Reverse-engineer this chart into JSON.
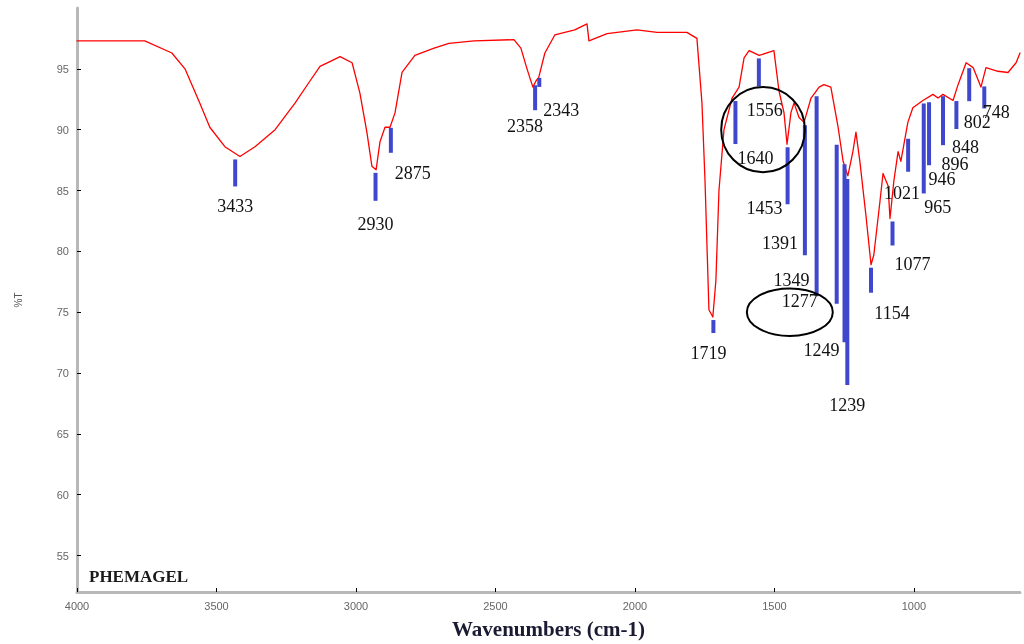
{
  "chart_data": {
    "type": "line",
    "xlabel": "Wavenumbers (cm-1)",
    "ylabel": "%T",
    "color": "#ff0000",
    "x": [
      4000,
      3757,
      3660,
      3613,
      3560,
      3524,
      3470,
      3416,
      3362,
      3290,
      3218,
      3165,
      3129,
      3075,
      3057,
      3014,
      2986,
      2961,
      2943,
      2928,
      2914,
      2896,
      2878,
      2860,
      2835,
      2789,
      2720,
      2667,
      2577,
      2434,
      2409,
      2387,
      2366,
      2355,
      2345,
      2323,
      2287,
      2216,
      2172,
      2165,
      2100,
      1993,
      1921,
      1814,
      1778,
      1760,
      1749,
      1735,
      1721,
      1710,
      1699,
      1681,
      1652,
      1627,
      1609,
      1591,
      1555,
      1502,
      1484,
      1466,
      1455,
      1441,
      1430,
      1412,
      1394,
      1369,
      1340,
      1323,
      1298,
      1272,
      1254,
      1237,
      1219,
      1208,
      1194,
      1172,
      1154,
      1144,
      1122,
      1111,
      1093,
      1086,
      1072,
      1057,
      1047,
      1022,
      1004,
      968,
      932,
      914,
      896,
      860,
      842,
      813,
      788,
      760,
      742,
      699,
      663,
      634,
      620
    ],
    "values": [
      97.3,
      97.3,
      96.3,
      95,
      92.2,
      90.2,
      88.6,
      87.8,
      88.6,
      90,
      92.2,
      94,
      95.2,
      95.8,
      96,
      95.5,
      93,
      89.8,
      87,
      86.7,
      89,
      90.2,
      90.2,
      91.4,
      94.7,
      96.1,
      96.7,
      97.1,
      97.3,
      97.4,
      96.7,
      95,
      93.5,
      94,
      94.3,
      96.3,
      97.8,
      98.2,
      98.7,
      97.3,
      97.9,
      98.2,
      98,
      98,
      97.5,
      92.2,
      85.8,
      75.2,
      74.6,
      77.6,
      85,
      90,
      92.6,
      93.5,
      95.9,
      96.5,
      96.1,
      96.5,
      93.2,
      91.4,
      88.8,
      91.4,
      92.2,
      91,
      90.6,
      92.6,
      93.5,
      93.7,
      93.5,
      90.2,
      87.4,
      86.2,
      88.2,
      89.8,
      87.4,
      82.9,
      78.9,
      79.7,
      84.1,
      86.4,
      85.4,
      82.7,
      85.8,
      88.2,
      87.4,
      90.6,
      91.8,
      92.4,
      92.9,
      92.6,
      92.9,
      92.4,
      93.7,
      95.5,
      95.1,
      93.5,
      95.1,
      94.8,
      94.7,
      95.5,
      96.3
    ],
    "xlim": [
      4000,
      620
    ],
    "xticks": [
      4000,
      3500,
      3000,
      2500,
      2000,
      1500,
      1000
    ],
    "ylim": [
      52,
      100
    ],
    "yticks": [
      55,
      60,
      65,
      70,
      75,
      80,
      85,
      90,
      95
    ],
    "grid": false,
    "legend": false,
    "annotations": [
      {
        "text": "3433",
        "x": 3433,
        "y": 87.8
      },
      {
        "text": "2930",
        "x": 2930,
        "y": 86.7
      },
      {
        "text": "2875",
        "x": 2875,
        "y": 90.4
      },
      {
        "text": "2358",
        "x": 2358,
        "y": 93.9
      },
      {
        "text": "2343",
        "x": 2343,
        "y": 94.5
      },
      {
        "text": "1719",
        "x": 1719,
        "y": 74.6
      },
      {
        "text": "1640",
        "x": 1640,
        "y": 92.6
      },
      {
        "text": "1556",
        "x": 1556,
        "y": 96.1
      },
      {
        "text": "1453",
        "x": 1453,
        "y": 88.8
      },
      {
        "text": "1391",
        "x": 1391,
        "y": 90.6
      },
      {
        "text": "1349",
        "x": 1349,
        "y": 93
      },
      {
        "text": "1277",
        "x": 1277,
        "y": 89
      },
      {
        "text": "1249",
        "x": 1249,
        "y": 87.4
      },
      {
        "text": "1239",
        "x": 1239,
        "y": 86.2
      },
      {
        "text": "1154",
        "x": 1154,
        "y": 78.9
      },
      {
        "text": "1077",
        "x": 1077,
        "y": 82.7
      },
      {
        "text": "1021",
        "x": 1021,
        "y": 89.5
      },
      {
        "text": "965",
        "x": 965,
        "y": 92.4
      },
      {
        "text": "946",
        "x": 946,
        "y": 92.5
      },
      {
        "text": "896",
        "x": 896,
        "y": 93
      },
      {
        "text": "848",
        "x": 848,
        "y": 92.6
      },
      {
        "text": "802",
        "x": 802,
        "y": 95.3
      },
      {
        "text": "748",
        "x": 748,
        "y": 93.8
      },
      "PHEMAGEL"
    ]
  }
}
